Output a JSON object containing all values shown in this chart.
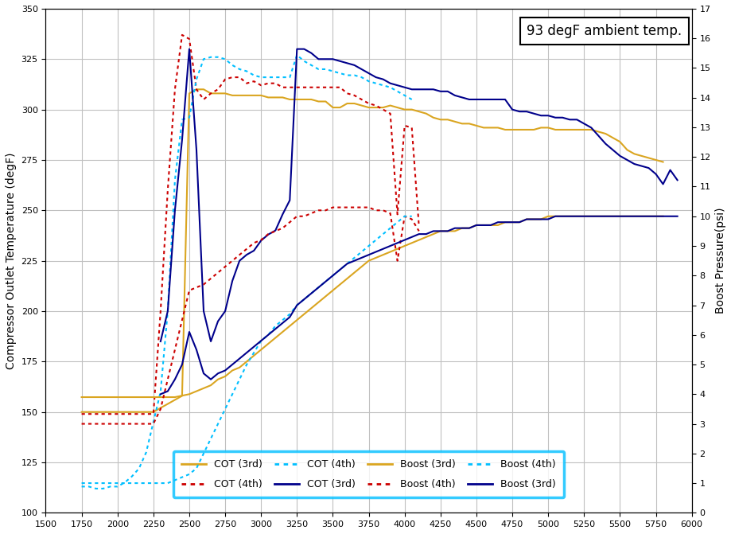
{
  "title": "93 degF ambient temp.",
  "xlabel": "",
  "ylabel_left": "Compressor Outlet Temperature (degF)",
  "ylabel_right": "Boost Pressure(psi)",
  "xlim": [
    1500,
    6000
  ],
  "ylim_left": [
    100,
    350
  ],
  "ylim_right": [
    0,
    17
  ],
  "xticks": [
    1500,
    1750,
    2000,
    2250,
    2500,
    2750,
    3000,
    3250,
    3500,
    3750,
    4000,
    4250,
    4500,
    4750,
    5000,
    5250,
    5500,
    5750,
    6000
  ],
  "yticks_left": [
    100,
    125,
    150,
    175,
    200,
    225,
    250,
    275,
    300,
    325,
    350
  ],
  "yticks_right": [
    0,
    1,
    2,
    3,
    4,
    5,
    6,
    7,
    8,
    9,
    10,
    11,
    12,
    13,
    14,
    15,
    16,
    17
  ],
  "background_color": "#ffffff",
  "grid_color": "#c0c0c0",
  "legend_box_color": "#00bfff",
  "cot_3rd_color": "#DAA520",
  "cot_4th_color": "#cc0000",
  "cot_4th_cyan_color": "#00bfff",
  "cot_3rd_blue_color": "#00008B",
  "boost_3rd_color": "#DAA520",
  "boost_4th_color": "#cc0000",
  "boost_4th_cyan_color": "#00bfff",
  "boost_3rd_blue_color": "#00008B",
  "cot_3rd_x": [
    1750,
    1800,
    1850,
    1900,
    1950,
    2000,
    2050,
    2100,
    2150,
    2200,
    2250,
    2300,
    2350,
    2400,
    2450,
    2500,
    2550,
    2600,
    2650,
    2700,
    2750,
    2800,
    2850,
    2900,
    2950,
    3000,
    3050,
    3100,
    3150,
    3200,
    3250,
    3300,
    3350,
    3400,
    3450,
    3500,
    3550,
    3600,
    3650,
    3700,
    3750,
    3800,
    3850,
    3900,
    3950,
    4000,
    4050,
    4100,
    4150,
    4200,
    4250,
    4300,
    4350,
    4400,
    4450,
    4500,
    4550,
    4600,
    4650,
    4700,
    4750,
    4800,
    4850,
    4900,
    4950,
    5000,
    5050,
    5100,
    5150,
    5200,
    5250,
    5300,
    5350,
    5400,
    5450,
    5500,
    5550,
    5600,
    5650,
    5700,
    5750,
    5800
  ],
  "cot_3rd_y": [
    150,
    150,
    150,
    150,
    150,
    150,
    150,
    150,
    150,
    150,
    150,
    152,
    154,
    156,
    158,
    308,
    310,
    310,
    308,
    308,
    308,
    307,
    307,
    307,
    307,
    307,
    306,
    306,
    306,
    305,
    305,
    305,
    305,
    304,
    304,
    301,
    301,
    303,
    303,
    302,
    301,
    301,
    301,
    302,
    301,
    300,
    300,
    299,
    298,
    296,
    295,
    295,
    294,
    293,
    293,
    292,
    291,
    291,
    291,
    290,
    290,
    290,
    290,
    290,
    291,
    291,
    290,
    290,
    290,
    290,
    290,
    290,
    289,
    288,
    286,
    284,
    280,
    278,
    277,
    276,
    275,
    274
  ],
  "cot_4th_x": [
    1750,
    1800,
    1850,
    1900,
    1950,
    2000,
    2050,
    2100,
    2150,
    2200,
    2250,
    2300,
    2350,
    2400,
    2450,
    2500,
    2550,
    2600,
    2650,
    2700,
    2750,
    2800,
    2850,
    2900,
    2950,
    3000,
    3050,
    3100,
    3150,
    3200,
    3250,
    3300,
    3350,
    3400,
    3450,
    3500,
    3550,
    3600,
    3650,
    3700,
    3750,
    3800,
    3850,
    3900,
    3950,
    4000,
    4050,
    4100
  ],
  "cot_4th_y": [
    149,
    149,
    149,
    149,
    149,
    149,
    149,
    149,
    149,
    149,
    149,
    200,
    260,
    310,
    337,
    335,
    310,
    305,
    308,
    310,
    315,
    316,
    316,
    313,
    314,
    312,
    313,
    313,
    311,
    311,
    311,
    311,
    311,
    311,
    311,
    311,
    311,
    308,
    307,
    305,
    303,
    302,
    300,
    298,
    248,
    292,
    291,
    242
  ],
  "cot_4th_cyan_x": [
    1750,
    1800,
    1850,
    1900,
    1950,
    2000,
    2050,
    2100,
    2150,
    2200,
    2250,
    2300,
    2350,
    2400,
    2450,
    2500,
    2550,
    2600,
    2650,
    2700,
    2750,
    2800,
    2850,
    2900,
    2950,
    3000,
    3050,
    3100,
    3150,
    3200,
    3250,
    3300,
    3350,
    3400,
    3450,
    3500,
    3550,
    3600,
    3650,
    3700,
    3750,
    3800,
    3850,
    3900,
    3950,
    4000,
    4050
  ],
  "cot_4th_cyan_y": [
    113,
    113,
    112,
    112,
    113,
    113,
    115,
    118,
    122,
    130,
    145,
    160,
    200,
    265,
    295,
    296,
    315,
    325,
    326,
    326,
    325,
    322,
    320,
    319,
    317,
    316,
    316,
    316,
    316,
    316,
    327,
    324,
    322,
    320,
    320,
    319,
    318,
    317,
    317,
    316,
    314,
    313,
    312,
    311,
    309,
    307,
    305
  ],
  "cot_3rd_blue_x": [
    2300,
    2350,
    2400,
    2450,
    2500,
    2550,
    2600,
    2650,
    2700,
    2750,
    2800,
    2850,
    2900,
    2950,
    3000,
    3050,
    3100,
    3150,
    3200,
    3250,
    3300,
    3350,
    3400,
    3450,
    3500,
    3550,
    3600,
    3650,
    3700,
    3750,
    3800,
    3850,
    3900,
    3950,
    4000,
    4050,
    4100,
    4150,
    4200,
    4250,
    4300,
    4350,
    4400,
    4450,
    4500,
    4550,
    4600,
    4650,
    4700,
    4750,
    4800,
    4850,
    4900,
    4950,
    5000,
    5050,
    5100,
    5150,
    5200,
    5250,
    5300,
    5350,
    5400,
    5450,
    5500,
    5550,
    5600,
    5650,
    5700,
    5750,
    5800,
    5850,
    5900
  ],
  "cot_3rd_blue_y": [
    185,
    200,
    250,
    285,
    330,
    280,
    200,
    185,
    195,
    200,
    215,
    225,
    228,
    230,
    235,
    238,
    240,
    248,
    255,
    330,
    330,
    328,
    325,
    325,
    325,
    324,
    323,
    322,
    320,
    318,
    316,
    315,
    313,
    312,
    311,
    310,
    310,
    310,
    310,
    309,
    309,
    307,
    306,
    305,
    305,
    305,
    305,
    305,
    305,
    300,
    299,
    299,
    298,
    297,
    297,
    296,
    296,
    295,
    295,
    293,
    291,
    287,
    283,
    280,
    277,
    275,
    273,
    272,
    271,
    268,
    263,
    270,
    265
  ],
  "boost_3rd_x": [
    1750,
    1800,
    1850,
    1900,
    1950,
    2000,
    2050,
    2100,
    2150,
    2200,
    2250,
    2300,
    2350,
    2400,
    2450,
    2500,
    2550,
    2600,
    2650,
    2700,
    2750,
    2800,
    2850,
    2900,
    2950,
    3000,
    3050,
    3100,
    3150,
    3200,
    3250,
    3300,
    3350,
    3400,
    3450,
    3500,
    3550,
    3600,
    3650,
    3700,
    3750,
    3800,
    3850,
    3900,
    3950,
    4000,
    4050,
    4100,
    4150,
    4200,
    4250,
    4300,
    4350,
    4400,
    4450,
    4500,
    4550,
    4600,
    4650,
    4700,
    4750,
    4800,
    4850,
    4900,
    4950,
    5000,
    5050,
    5100,
    5150,
    5200,
    5250,
    5300,
    5350,
    5400,
    5450,
    5500,
    5550,
    5600,
    5650,
    5700,
    5750,
    5800
  ],
  "boost_3rd_y": [
    3.9,
    3.9,
    3.9,
    3.9,
    3.9,
    3.9,
    3.9,
    3.9,
    3.9,
    3.9,
    3.9,
    3.9,
    3.9,
    3.9,
    3.95,
    4.0,
    4.1,
    4.2,
    4.3,
    4.5,
    4.6,
    4.8,
    4.9,
    5.1,
    5.3,
    5.5,
    5.7,
    5.9,
    6.1,
    6.3,
    6.5,
    6.7,
    6.9,
    7.1,
    7.3,
    7.5,
    7.7,
    7.9,
    8.1,
    8.3,
    8.5,
    8.6,
    8.7,
    8.8,
    8.9,
    9.0,
    9.1,
    9.2,
    9.3,
    9.4,
    9.5,
    9.5,
    9.5,
    9.6,
    9.6,
    9.7,
    9.7,
    9.7,
    9.7,
    9.8,
    9.8,
    9.8,
    9.9,
    9.9,
    9.9,
    10.0,
    10.0,
    10.0,
    10.0,
    10.0,
    10.0,
    10.0,
    10.0,
    10.0,
    10.0,
    10.0,
    10.0,
    10.0,
    10.0,
    10.0,
    10.0,
    10.0
  ],
  "boost_4th_x": [
    1750,
    1800,
    1850,
    1900,
    1950,
    2000,
    2050,
    2100,
    2150,
    2200,
    2250,
    2300,
    2350,
    2400,
    2450,
    2500,
    2550,
    2600,
    2650,
    2700,
    2750,
    2800,
    2850,
    2900,
    2950,
    3000,
    3050,
    3100,
    3150,
    3200,
    3250,
    3300,
    3350,
    3400,
    3450,
    3500,
    3550,
    3600,
    3650,
    3700,
    3750,
    3800,
    3850,
    3900,
    3950,
    4000,
    4050,
    4100
  ],
  "boost_4th_y": [
    3.0,
    3.0,
    3.0,
    3.0,
    3.0,
    3.0,
    3.0,
    3.0,
    3.0,
    3.0,
    3.0,
    3.5,
    4.5,
    5.5,
    6.5,
    7.5,
    7.6,
    7.7,
    7.9,
    8.1,
    8.3,
    8.5,
    8.7,
    8.9,
    9.1,
    9.2,
    9.4,
    9.5,
    9.6,
    9.8,
    10.0,
    10.0,
    10.1,
    10.2,
    10.2,
    10.3,
    10.3,
    10.3,
    10.3,
    10.3,
    10.3,
    10.2,
    10.2,
    10.1,
    8.5,
    10.0,
    9.9,
    9.5
  ],
  "boost_4th_cyan_x": [
    1750,
    1800,
    1850,
    1900,
    1950,
    2000,
    2050,
    2100,
    2150,
    2200,
    2250,
    2300,
    2350,
    2400,
    2450,
    2500,
    2550,
    2600,
    2650,
    2700,
    2750,
    2800,
    2850,
    2900,
    2950,
    3000,
    3050,
    3100,
    3150,
    3200,
    3250,
    3300,
    3350,
    3400,
    3450,
    3500,
    3550,
    3600,
    3650,
    3700,
    3750,
    3800,
    3850,
    3900,
    3950,
    4000,
    4050
  ],
  "boost_4th_cyan_y": [
    1.0,
    1.0,
    1.0,
    1.0,
    1.0,
    1.0,
    1.0,
    1.0,
    1.0,
    1.0,
    1.0,
    1.0,
    1.0,
    1.1,
    1.2,
    1.3,
    1.5,
    2.0,
    2.5,
    3.0,
    3.5,
    4.0,
    4.5,
    5.0,
    5.4,
    5.8,
    6.0,
    6.3,
    6.5,
    6.7,
    7.0,
    7.2,
    7.4,
    7.6,
    7.8,
    8.0,
    8.2,
    8.4,
    8.6,
    8.8,
    9.0,
    9.2,
    9.4,
    9.6,
    9.8,
    10.0,
    10.0
  ],
  "boost_3rd_blue_x": [
    2300,
    2350,
    2400,
    2450,
    2500,
    2550,
    2600,
    2650,
    2700,
    2750,
    2800,
    2850,
    2900,
    2950,
    3000,
    3050,
    3100,
    3150,
    3200,
    3250,
    3300,
    3350,
    3400,
    3450,
    3500,
    3550,
    3600,
    3650,
    3700,
    3750,
    3800,
    3850,
    3900,
    3950,
    4000,
    4050,
    4100,
    4150,
    4200,
    4250,
    4300,
    4350,
    4400,
    4450,
    4500,
    4550,
    4600,
    4650,
    4700,
    4750,
    4800,
    4850,
    4900,
    4950,
    5000,
    5050,
    5100,
    5150,
    5200,
    5250,
    5300,
    5350,
    5400,
    5450,
    5500,
    5550,
    5600,
    5650,
    5700,
    5750,
    5800,
    5850,
    5900
  ],
  "boost_3rd_blue_y": [
    4.0,
    4.1,
    4.5,
    5.0,
    6.1,
    5.5,
    4.7,
    4.5,
    4.7,
    4.8,
    5.0,
    5.2,
    5.4,
    5.6,
    5.8,
    6.0,
    6.2,
    6.4,
    6.6,
    7.0,
    7.2,
    7.4,
    7.6,
    7.8,
    8.0,
    8.2,
    8.4,
    8.5,
    8.6,
    8.7,
    8.8,
    8.9,
    9.0,
    9.1,
    9.2,
    9.3,
    9.4,
    9.4,
    9.5,
    9.5,
    9.5,
    9.6,
    9.6,
    9.6,
    9.7,
    9.7,
    9.7,
    9.8,
    9.8,
    9.8,
    9.8,
    9.9,
    9.9,
    9.9,
    9.9,
    10.0,
    10.0,
    10.0,
    10.0,
    10.0,
    10.0,
    10.0,
    10.0,
    10.0,
    10.0,
    10.0,
    10.0,
    10.0,
    10.0,
    10.0,
    10.0,
    10.0,
    10.0
  ]
}
